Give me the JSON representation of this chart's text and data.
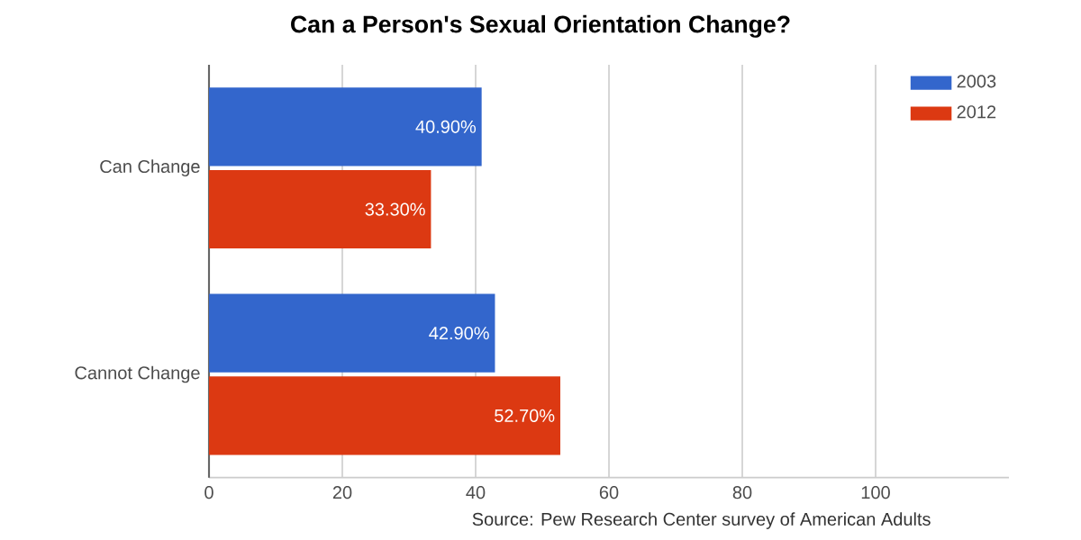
{
  "chart_data": {
    "type": "bar",
    "orientation": "horizontal",
    "title": "Can a Person's Sexual Orientation Change?",
    "categories": [
      "Can Change",
      "Cannot Change"
    ],
    "series": [
      {
        "name": "2003",
        "color": "#3366cc",
        "values": [
          40.9,
          42.9
        ],
        "value_labels": [
          "40.90%",
          "42.90%"
        ]
      },
      {
        "name": "2012",
        "color": "#dc3912",
        "values": [
          33.3,
          52.7
        ],
        "value_labels": [
          "33.30%",
          "52.70%"
        ]
      }
    ],
    "xlim": [
      0,
      120
    ],
    "xticks": [
      0,
      20,
      40,
      60,
      80,
      100
    ],
    "grid": "x",
    "legend": "top right",
    "annotations": [
      "Source: Pew Research Center survey of American Adults"
    ]
  }
}
